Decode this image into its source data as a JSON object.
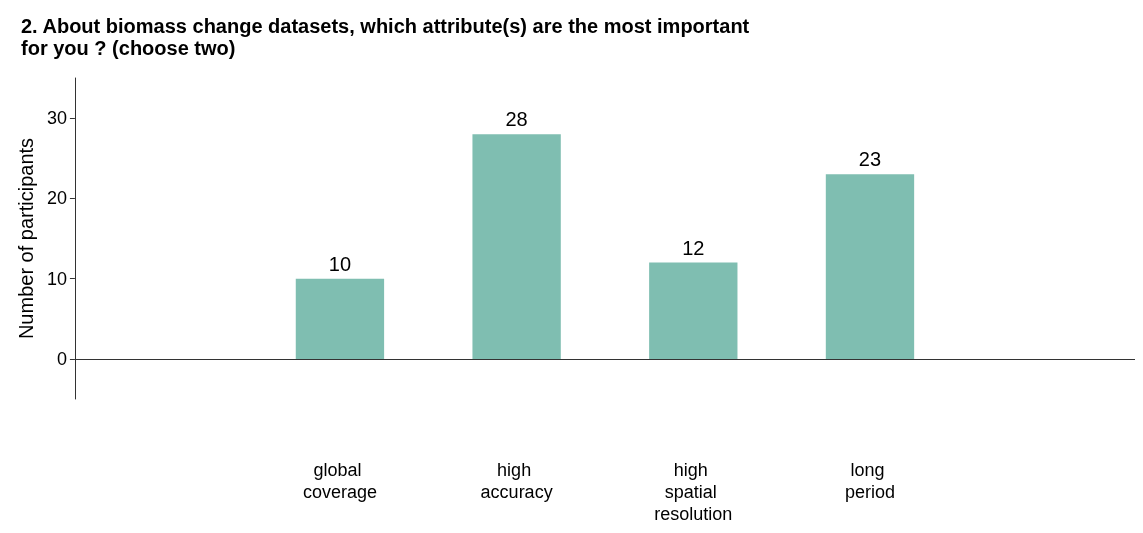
{
  "chart_data": {
    "type": "bar",
    "title": "2. About biomass change datasets, which attribute(s) are the most important for you ? (choose two)",
    "ylabel": "Number of participants",
    "categories": [
      null,
      "global coverage",
      "high accuracy",
      "high spatial resolution",
      "long period",
      null
    ],
    "values": [
      null,
      10,
      28,
      12,
      23,
      null
    ],
    "color": "#7fbeb1",
    "ylim": [
      -5,
      35
    ],
    "yticks": [
      0,
      10,
      20,
      30
    ],
    "data_labels": true
  }
}
